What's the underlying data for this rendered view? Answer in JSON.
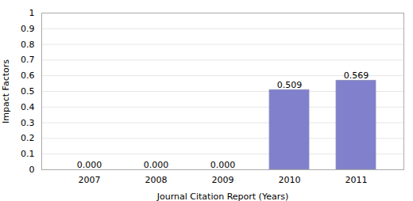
{
  "chart_data": {
    "type": "bar",
    "categories": [
      "2007",
      "2008",
      "2009",
      "2010",
      "2011"
    ],
    "values": [
      0.0,
      0.0,
      0.0,
      0.509,
      0.569
    ],
    "value_labels": [
      "0.000",
      "0.000",
      "0.000",
      "0.509",
      "0.569"
    ],
    "colors": [
      "#ffffff",
      "#ffffff",
      "#ffffff",
      "#8080cc",
      "#8080cc"
    ],
    "xlabel": "Journal Citation Report (Years)",
    "ylabel": "Impact Factors",
    "ylim": [
      0,
      1.0
    ],
    "yticks": [
      0,
      0.1,
      0.2,
      0.3,
      0.4,
      0.5,
      0.6,
      0.7,
      0.8,
      0.9,
      1
    ],
    "grid": true,
    "data_labels": true
  }
}
